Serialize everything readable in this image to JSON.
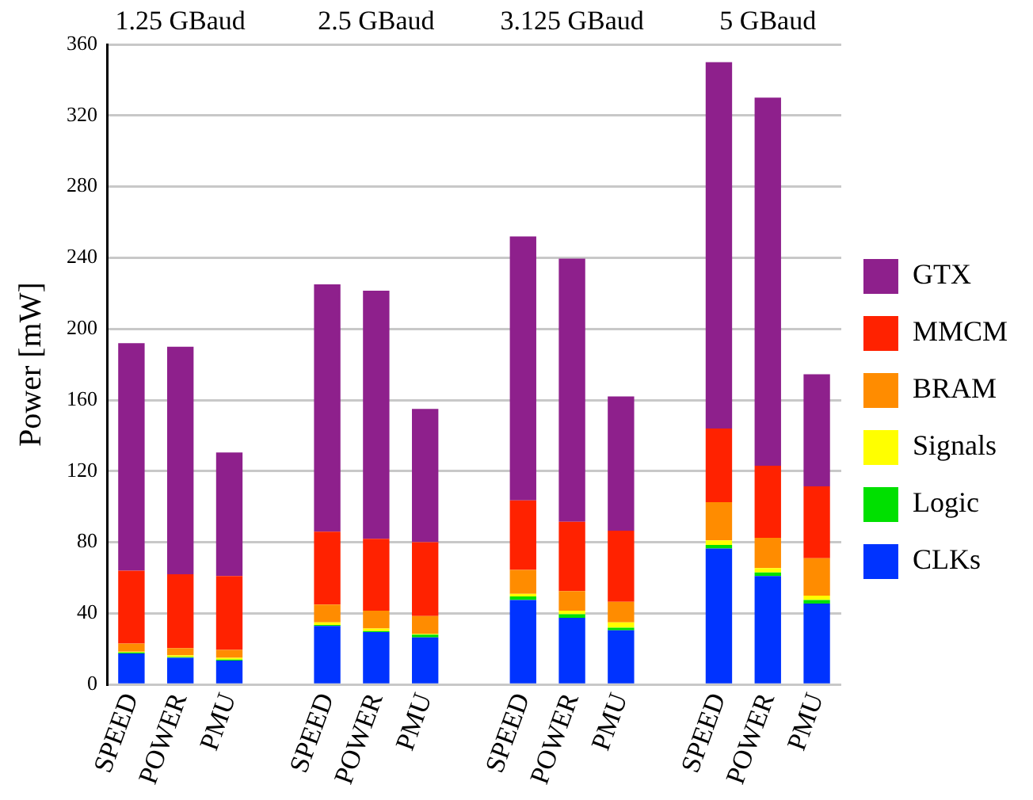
{
  "chart_data": {
    "type": "bar",
    "stacked": true,
    "ylabel": "Power [mW]",
    "categories": [
      "SPEED",
      "POWER",
      "PMU",
      null,
      "SPEED",
      "POWER",
      "PMU",
      null,
      "SPEED",
      "POWER",
      "PMU",
      null,
      "SPEED",
      "POWER",
      "PMU"
    ],
    "annotations": [
      "1.25 GBaud",
      "2.5 GBaud",
      "3.125 GBaud",
      "5 GBaud"
    ],
    "ylim": [
      0,
      360
    ],
    "yticks": [
      0,
      40,
      80,
      120,
      160,
      200,
      240,
      280,
      320,
      360
    ],
    "grid": "y",
    "legend": "right",
    "series": [
      {
        "name": "CLKs",
        "color": "#0033ff",
        "values": [
          17.5,
          15,
          13.5,
          null,
          33,
          29.5,
          26.5,
          null,
          47.5,
          37.5,
          30.5,
          null,
          76.5,
          61,
          45.5
        ]
      },
      {
        "name": "Logic",
        "color": "#00e000",
        "values": [
          0.5,
          0.5,
          0.5,
          null,
          0.5,
          0.5,
          1.5,
          null,
          2,
          2,
          1.5,
          null,
          2,
          2,
          2
        ]
      },
      {
        "name": "Signals",
        "color": "#ffff00",
        "values": [
          0.5,
          1,
          1,
          null,
          1.5,
          1.5,
          0.5,
          null,
          1.5,
          2,
          3,
          null,
          2.5,
          2.5,
          2.5
        ]
      },
      {
        "name": "BRAM",
        "color": "#ff8c00",
        "values": [
          4.5,
          4,
          4.5,
          null,
          10,
          10,
          10,
          null,
          13.5,
          11,
          11.5,
          null,
          21.5,
          17,
          21
        ]
      },
      {
        "name": "MMCM",
        "color": "#ff2200",
        "values": [
          41,
          41.5,
          41.5,
          null,
          41,
          40.5,
          41.5,
          null,
          39,
          39,
          40,
          null,
          41.5,
          40.5,
          40.5
        ]
      },
      {
        "name": "GTX",
        "color": "#8e208c",
        "values": [
          128,
          128,
          69.5,
          null,
          139,
          139.5,
          75,
          null,
          148.5,
          148,
          75.5,
          null,
          206,
          207,
          63
        ]
      }
    ]
  }
}
